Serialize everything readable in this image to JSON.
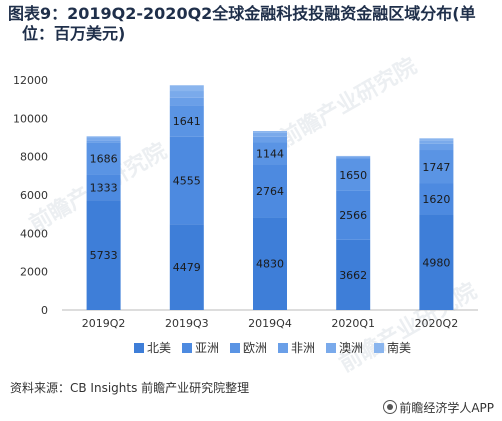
{
  "title_line1": "图表9：2019Q2-2020Q2全球金融科技投融资金融区域分布(单",
  "title_line2": "位：百万美元)",
  "source": "资料来源：CB Insights   前瞻产业研究院整理",
  "footer_brand": "前瞻经济学人APP",
  "watermark": "前瞻产业研究院",
  "colors": {
    "北美": "#3e7ed8",
    "亚洲": "#4d8ae0",
    "欧洲": "#5a94e4",
    "非洲": "#6a9fe8",
    "澳洲": "#7aaaeb",
    "南美": "#8ab5ee"
  },
  "chart_data": {
    "type": "bar",
    "stacked": true,
    "categories": [
      "2019Q2",
      "2019Q3",
      "2019Q4",
      "2020Q1",
      "2020Q2"
    ],
    "ylim": [
      0,
      12000
    ],
    "yticks": [
      0,
      2000,
      4000,
      6000,
      8000,
      10000,
      12000
    ],
    "legend_position": "bottom",
    "grid": false,
    "series": [
      {
        "name": "北美",
        "values": [
          5733,
          4479,
          4830,
          3662,
          4980
        ],
        "labels": [
          "5733",
          "4479",
          "4830",
          "3662",
          "4980"
        ]
      },
      {
        "name": "亚洲",
        "values": [
          1333,
          4555,
          2764,
          2566,
          1620
        ],
        "labels": [
          "1333",
          "4555",
          "2764",
          "2566",
          "1620"
        ]
      },
      {
        "name": "欧洲",
        "values": [
          1686,
          1641,
          1144,
          1650,
          1747
        ],
        "labels": [
          "1686",
          "1641",
          "1144",
          "1650",
          "1747"
        ]
      },
      {
        "name": "非洲",
        "values": [
          100,
          400,
          300,
          80,
          330
        ],
        "labels": [
          "",
          "",
          "",
          "",
          ""
        ]
      },
      {
        "name": "澳洲",
        "values": [
          150,
          350,
          200,
          60,
          180
        ],
        "labels": [
          "",
          "",
          "",
          "",
          ""
        ]
      },
      {
        "name": "南美",
        "values": [
          60,
          300,
          100,
          20,
          100
        ],
        "labels": [
          "",
          "",
          "",
          "",
          ""
        ]
      }
    ]
  }
}
